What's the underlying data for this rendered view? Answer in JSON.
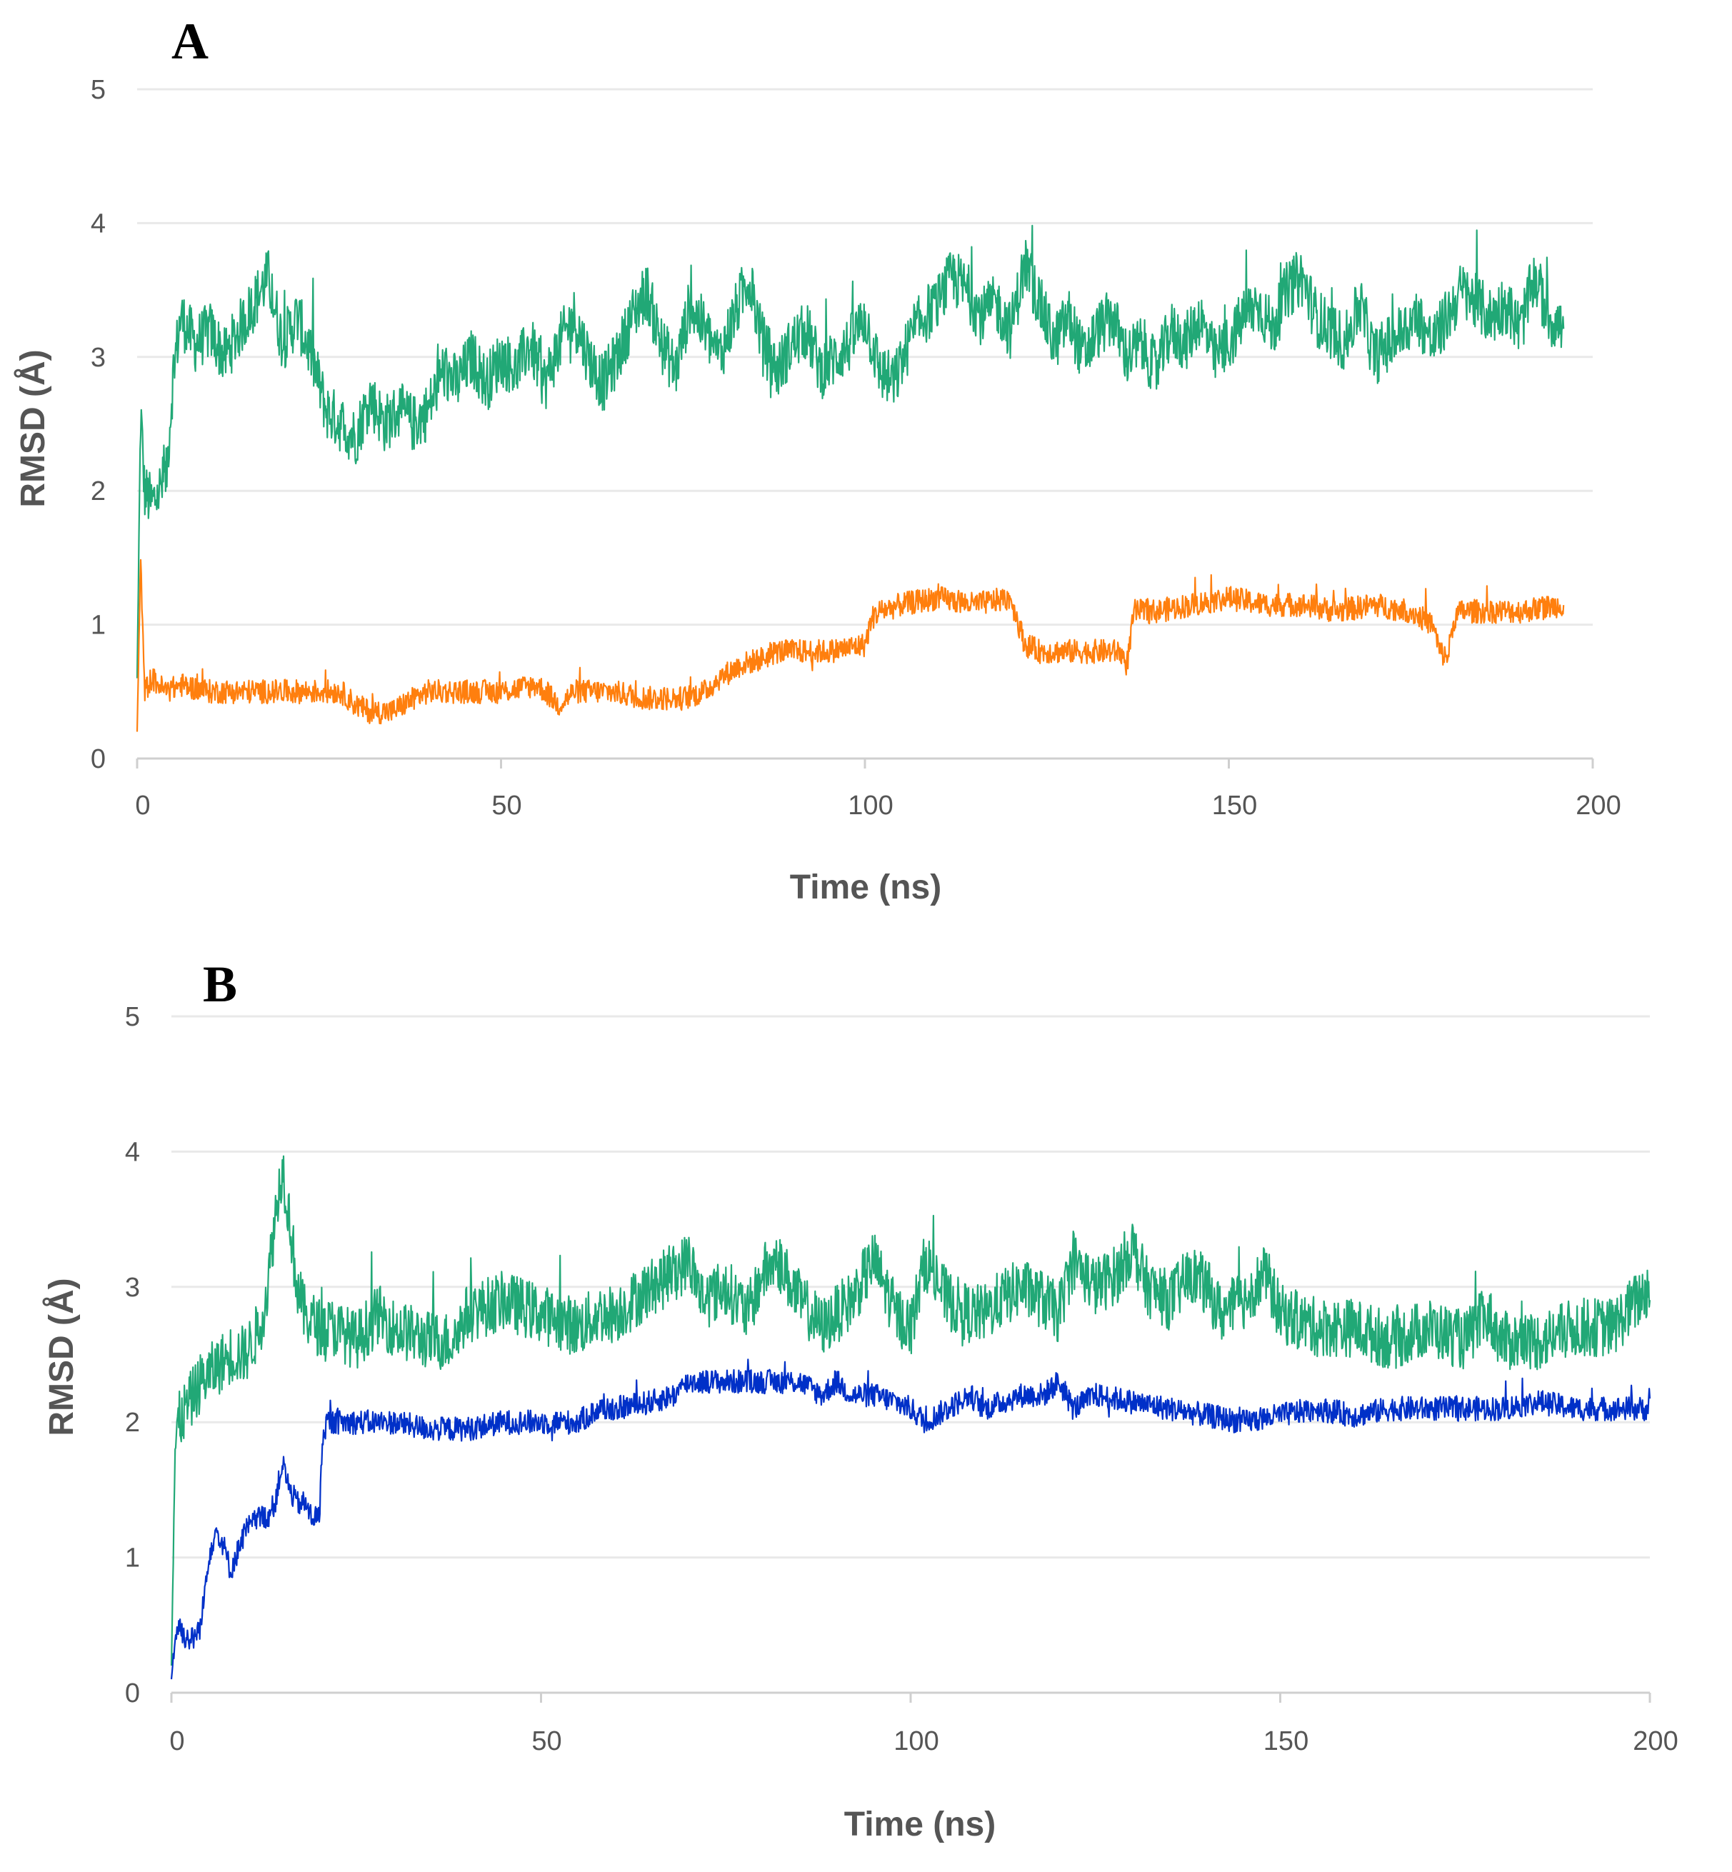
{
  "chart_data": [
    {
      "panel": "A",
      "type": "line",
      "xlabel": "Time (ns)",
      "ylabel": "RMSD (Å)",
      "xlim": [
        0,
        200
      ],
      "ylim": [
        0,
        5
      ],
      "xticks": [
        "0",
        "50",
        "100",
        "150",
        "200"
      ],
      "yticks": [
        "0",
        "1",
        "2",
        "3",
        "4",
        "5"
      ],
      "grid": true,
      "series": [
        {
          "name": "green",
          "color": "#21a876",
          "x": [
            0,
            0.5,
            1,
            2,
            3,
            4,
            5,
            6,
            8,
            10,
            12,
            14,
            16,
            18,
            20,
            22,
            24,
            26,
            28,
            30,
            32,
            34,
            36,
            38,
            40,
            42,
            44,
            46,
            48,
            50,
            52,
            54,
            56,
            58,
            60,
            62,
            64,
            66,
            68,
            70,
            72,
            74,
            76,
            78,
            80,
            82,
            84,
            86,
            88,
            90,
            92,
            94,
            96,
            98,
            100,
            102,
            104,
            106,
            108,
            110,
            112,
            114,
            116,
            118,
            120,
            122,
            124,
            126,
            128,
            130,
            132,
            134,
            136,
            138,
            140,
            142,
            144,
            146,
            148,
            150,
            152,
            154,
            156,
            158,
            160,
            162,
            164,
            166,
            168,
            170,
            172,
            174,
            176,
            178,
            180,
            182,
            184,
            186,
            188,
            190,
            192,
            194,
            196
          ],
          "y": [
            0.6,
            2.6,
            2.0,
            1.9,
            2.0,
            2.1,
            2.9,
            3.3,
            3.1,
            3.2,
            3.0,
            3.2,
            3.4,
            3.6,
            3.1,
            3.3,
            3.0,
            2.6,
            2.5,
            2.4,
            2.7,
            2.5,
            2.6,
            2.5,
            2.6,
            2.9,
            2.8,
            3.0,
            2.8,
            3.0,
            2.9,
            3.1,
            2.8,
            3.1,
            3.3,
            3.0,
            2.8,
            3.0,
            3.3,
            3.5,
            3.1,
            2.9,
            3.4,
            3.2,
            3.0,
            3.3,
            3.6,
            3.1,
            2.9,
            3.1,
            3.2,
            2.9,
            3.0,
            3.1,
            3.3,
            2.9,
            2.8,
            3.1,
            3.3,
            3.4,
            3.6,
            3.5,
            3.3,
            3.4,
            3.2,
            3.7,
            3.4,
            3.1,
            3.3,
            3.0,
            3.2,
            3.3,
            3.0,
            3.1,
            2.9,
            3.2,
            3.1,
            3.3,
            3.0,
            3.1,
            3.3,
            3.4,
            3.2,
            3.5,
            3.6,
            3.3,
            3.2,
            3.1,
            3.4,
            3.0,
            3.1,
            3.2,
            3.3,
            3.1,
            3.3,
            3.5,
            3.4,
            3.3,
            3.4,
            3.2,
            3.6,
            3.3,
            3.2
          ]
        },
        {
          "name": "orange",
          "color": "#ff7f0e",
          "x": [
            0,
            0.5,
            1,
            2,
            4,
            6,
            10,
            15,
            20,
            25,
            28,
            30,
            32,
            35,
            38,
            40,
            45,
            50,
            55,
            58,
            60,
            65,
            70,
            75,
            78,
            80,
            83,
            86,
            88,
            90,
            95,
            100,
            101,
            102,
            105,
            110,
            115,
            120,
            122,
            124,
            128,
            132,
            135,
            136,
            137,
            140,
            145,
            150,
            155,
            160,
            165,
            170,
            175,
            178,
            179,
            180,
            181,
            182,
            185,
            190,
            196
          ],
          "y": [
            0.2,
            1.5,
            0.5,
            0.6,
            0.5,
            0.55,
            0.5,
            0.5,
            0.5,
            0.5,
            0.5,
            0.4,
            0.35,
            0.35,
            0.45,
            0.5,
            0.5,
            0.5,
            0.55,
            0.4,
            0.5,
            0.5,
            0.45,
            0.45,
            0.5,
            0.6,
            0.7,
            0.75,
            0.8,
            0.8,
            0.8,
            0.85,
            1.05,
            1.1,
            1.15,
            1.2,
            1.15,
            1.2,
            0.85,
            0.8,
            0.8,
            0.8,
            0.8,
            0.7,
            1.1,
            1.1,
            1.15,
            1.2,
            1.15,
            1.15,
            1.1,
            1.15,
            1.1,
            1.0,
            0.8,
            0.75,
            1.05,
            1.1,
            1.1,
            1.1,
            1.15
          ]
        }
      ]
    },
    {
      "panel": "B",
      "type": "line",
      "xlabel": "Time (ns)",
      "ylabel": "RMSD (Å)",
      "xlim": [
        0,
        200
      ],
      "ylim": [
        0,
        5
      ],
      "xticks": [
        "0",
        "50",
        "100",
        "150",
        "200"
      ],
      "yticks": [
        "0",
        "1",
        "2",
        "3",
        "4",
        "5"
      ],
      "grid": true,
      "series": [
        {
          "name": "green",
          "color": "#21a876",
          "x": [
            0,
            0.5,
            1,
            2,
            4,
            6,
            8,
            10,
            12,
            13,
            14,
            15,
            16,
            17,
            18,
            20,
            22,
            25,
            28,
            30,
            35,
            38,
            40,
            45,
            50,
            55,
            58,
            60,
            65,
            68,
            70,
            72,
            75,
            78,
            80,
            82,
            85,
            88,
            90,
            92,
            95,
            98,
            100,
            102,
            105,
            108,
            110,
            112,
            115,
            118,
            120,
            122,
            125,
            128,
            130,
            132,
            135,
            138,
            140,
            142,
            145,
            148,
            150,
            155,
            158,
            160,
            165,
            170,
            175,
            178,
            180,
            185,
            190,
            195,
            200
          ],
          "y": [
            0.2,
            1.8,
            2.0,
            2.1,
            2.3,
            2.4,
            2.5,
            2.5,
            2.7,
            3.0,
            3.5,
            3.9,
            3.5,
            3.0,
            2.8,
            2.7,
            2.7,
            2.6,
            2.8,
            2.7,
            2.6,
            2.6,
            2.8,
            2.9,
            2.8,
            2.7,
            2.8,
            2.8,
            3.0,
            3.1,
            3.2,
            2.9,
            3.0,
            2.8,
            3.1,
            3.2,
            2.9,
            2.7,
            2.8,
            2.9,
            3.2,
            2.8,
            2.7,
            3.2,
            2.9,
            2.8,
            2.8,
            2.9,
            3.0,
            2.9,
            2.8,
            3.2,
            3.0,
            3.1,
            3.3,
            3.0,
            2.9,
            3.1,
            3.0,
            2.8,
            2.9,
            3.1,
            2.8,
            2.7,
            2.7,
            2.7,
            2.6,
            2.7,
            2.6,
            2.8,
            2.6,
            2.6,
            2.7,
            2.7,
            3.0
          ]
        },
        {
          "name": "blue",
          "color": "#0030c8",
          "x": [
            0,
            0.5,
            1,
            2,
            3,
            4,
            5,
            6,
            7,
            8,
            10,
            12,
            13,
            14,
            15,
            16,
            17,
            18,
            19,
            20,
            20.5,
            21,
            22,
            25,
            30,
            35,
            40,
            45,
            50,
            55,
            58,
            60,
            65,
            68,
            70,
            75,
            80,
            85,
            88,
            90,
            92,
            95,
            98,
            100,
            102,
            105,
            108,
            110,
            115,
            118,
            120,
            122,
            125,
            130,
            135,
            140,
            145,
            150,
            155,
            160,
            165,
            170,
            175,
            180,
            185,
            190,
            195,
            200
          ],
          "y": [
            0.1,
            0.4,
            0.5,
            0.4,
            0.4,
            0.5,
            1.0,
            1.2,
            1.1,
            0.9,
            1.2,
            1.3,
            1.3,
            1.4,
            1.7,
            1.5,
            1.4,
            1.4,
            1.3,
            1.3,
            1.9,
            2.0,
            2.0,
            2.0,
            2.0,
            1.95,
            1.95,
            2.0,
            2.0,
            2.0,
            2.1,
            2.1,
            2.15,
            2.2,
            2.3,
            2.3,
            2.3,
            2.3,
            2.2,
            2.3,
            2.2,
            2.2,
            2.15,
            2.1,
            2.0,
            2.1,
            2.2,
            2.1,
            2.2,
            2.2,
            2.3,
            2.1,
            2.2,
            2.15,
            2.1,
            2.05,
            2.0,
            2.05,
            2.1,
            2.05,
            2.1,
            2.1,
            2.1,
            2.1,
            2.15,
            2.1,
            2.1,
            2.1
          ]
        }
      ]
    }
  ]
}
